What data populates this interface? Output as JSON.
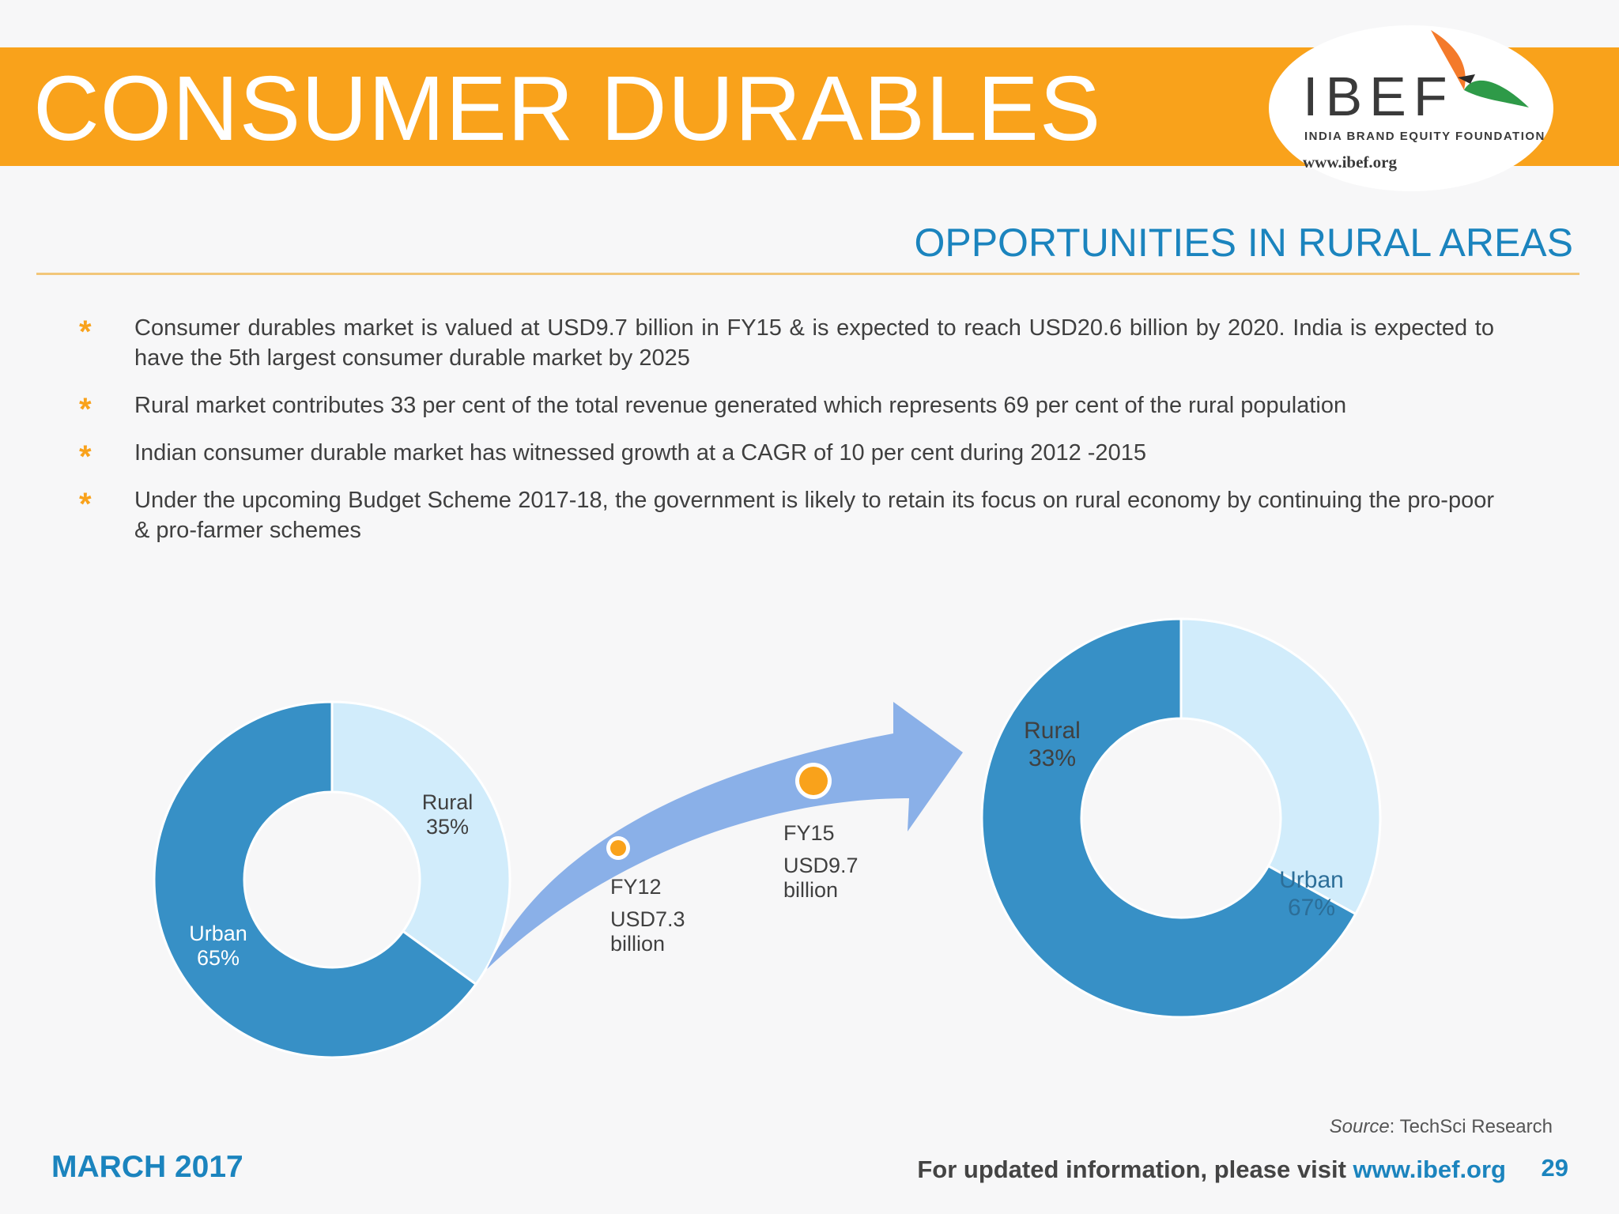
{
  "header": {
    "title": "CONSUMER DURABLES",
    "logo_text": "IBEF",
    "logo_subtitle": "INDIA BRAND EQUITY FOUNDATION",
    "logo_url": "www.ibef.org",
    "accent_color": "#f9a21b"
  },
  "section_title": "OPPORTUNITIES IN RURAL AREAS",
  "bullets": [
    "Consumer durables market is valued at USD9.7 billion in FY15 & is expected to reach USD20.6 billion by 2020. India is expected to have the 5th largest consumer durable market by 2025",
    "Rural market contributes 33 per cent of the total revenue generated which represents 69 per cent of the rural population",
    "Indian consumer durable market has witnessed growth at a CAGR of 10 per cent during 2012 -2015",
    "Under the upcoming Budget Scheme 2017-18, the government is likely to retain its focus on rural economy by continuing the pro-poor & pro-farmer schemes"
  ],
  "bullet_symbol": "*",
  "chart_data": [
    {
      "type": "pie",
      "variant": "donut",
      "slices": [
        {
          "label": "Rural",
          "value": 35,
          "value_label": "35%",
          "color": "#d1ecfb"
        },
        {
          "label": "Urban",
          "value": 65,
          "value_label": "65%",
          "color": "#3790c6"
        }
      ]
    },
    {
      "type": "pie",
      "variant": "donut",
      "slices": [
        {
          "label": "Rural",
          "value": 33,
          "value_label": "33%",
          "color": "#d1ecfb"
        },
        {
          "label": "Urban",
          "value": 67,
          "value_label": "67%",
          "color": "#3790c6"
        }
      ]
    }
  ],
  "flow": {
    "arrow_color": "#8ab0e8",
    "marker_color": "#f9a21b",
    "points": [
      {
        "period": "FY12",
        "value": "USD7.3",
        "unit": "billion"
      },
      {
        "period": "FY15",
        "value": "USD9.7",
        "unit": "billion"
      }
    ]
  },
  "source": {
    "label": "Source",
    "text": ": TechSci Research"
  },
  "footer": {
    "date": "MARCH 2017",
    "note": "For updated information, please visit ",
    "url": "www.ibef.org",
    "page": "29"
  }
}
